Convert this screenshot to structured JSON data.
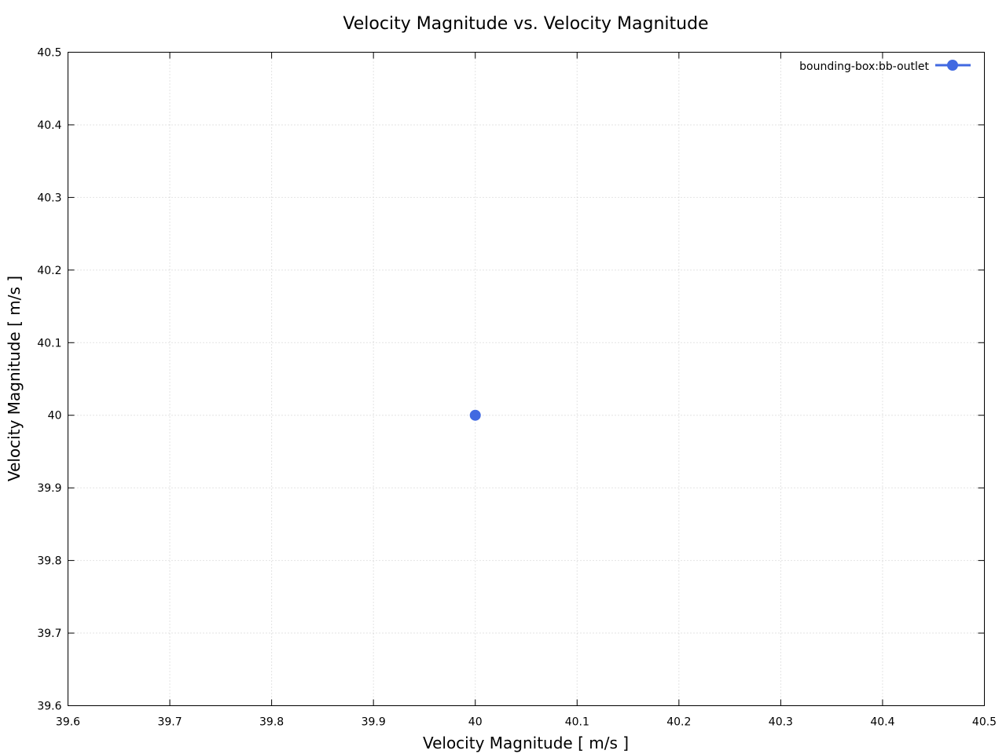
{
  "chart_data": {
    "type": "scatter",
    "title": "Velocity Magnitude vs. Velocity Magnitude",
    "xlabel": "Velocity Magnitude [ m/s ]",
    "ylabel": "Velocity Magnitude [ m/s ]",
    "xlim": [
      39.6,
      40.5
    ],
    "ylim": [
      39.6,
      40.5
    ],
    "xticks": [
      39.6,
      39.7,
      39.8,
      39.9,
      40,
      40.1,
      40.2,
      40.3,
      40.4,
      40.5
    ],
    "yticks": [
      39.6,
      39.7,
      39.8,
      39.9,
      40,
      40.1,
      40.2,
      40.3,
      40.4,
      40.5
    ],
    "xtick_labels": [
      "39.6",
      "39.7",
      "39.8",
      "39.9",
      "40",
      "40.1",
      "40.2",
      "40.3",
      "40.4",
      "40.5"
    ],
    "ytick_labels": [
      "39.6",
      "39.7",
      "39.8",
      "39.9",
      "40",
      "40.1",
      "40.2",
      "40.3",
      "40.4",
      "40.5"
    ],
    "grid": true,
    "legend_position": "top-right",
    "series": [
      {
        "name": "bounding-box:bb-outlet",
        "color": "#4169e1",
        "marker": "circle",
        "points": [
          {
            "x": 40,
            "y": 40
          }
        ]
      }
    ]
  }
}
